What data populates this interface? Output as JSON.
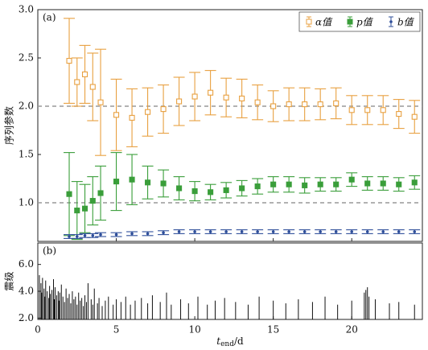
{
  "chart_data": [
    {
      "type": "errorbar",
      "label": "(a)",
      "ylabel": "序列参数",
      "x": [
        2,
        2.5,
        3,
        3.5,
        4,
        5,
        6,
        7,
        8,
        9,
        10,
        11,
        12,
        13,
        14,
        15,
        16,
        17,
        18,
        19,
        20,
        21,
        22,
        23,
        24
      ],
      "series": [
        {
          "name": "α值",
          "color": "#e8a040",
          "marker": "open-square",
          "values": [
            2.47,
            2.25,
            2.33,
            2.2,
            2.04,
            1.91,
            1.88,
            1.94,
            1.97,
            2.05,
            2.1,
            2.14,
            2.09,
            2.08,
            2.04,
            2.0,
            2.02,
            2.02,
            2.02,
            2.03,
            1.96,
            1.96,
            1.96,
            1.92,
            1.89
          ],
          "errors": [
            0.44,
            0.25,
            0.3,
            0.35,
            0.55,
            0.37,
            0.3,
            0.25,
            0.25,
            0.25,
            0.25,
            0.23,
            0.2,
            0.2,
            0.18,
            0.16,
            0.17,
            0.17,
            0.16,
            0.16,
            0.15,
            0.15,
            0.15,
            0.15,
            0.17
          ]
        },
        {
          "name": "p值",
          "color": "#3a9e3a",
          "marker": "filled-square",
          "values": [
            1.09,
            0.92,
            0.94,
            1.02,
            1.1,
            1.22,
            1.24,
            1.21,
            1.2,
            1.15,
            1.12,
            1.11,
            1.13,
            1.15,
            1.17,
            1.19,
            1.19,
            1.18,
            1.19,
            1.19,
            1.24,
            1.2,
            1.2,
            1.19,
            1.21
          ],
          "errors": [
            0.43,
            0.3,
            0.25,
            0.25,
            0.28,
            0.3,
            0.26,
            0.17,
            0.14,
            0.12,
            0.1,
            0.08,
            0.08,
            0.08,
            0.08,
            0.08,
            0.08,
            0.08,
            0.07,
            0.07,
            0.07,
            0.07,
            0.07,
            0.07,
            0.07
          ]
        },
        {
          "name": "b值",
          "color": "#2f4f9a",
          "marker": "dot",
          "values": [
            0.65,
            0.65,
            0.66,
            0.66,
            0.67,
            0.67,
            0.68,
            0.68,
            0.69,
            0.7,
            0.7,
            0.7,
            0.7,
            0.7,
            0.7,
            0.7,
            0.7,
            0.7,
            0.7,
            0.7,
            0.7,
            0.7,
            0.7,
            0.7,
            0.7
          ],
          "errors": [
            0.02,
            0.02,
            0.02,
            0.02,
            0.02,
            0.02,
            0.02,
            0.02,
            0.02,
            0.02,
            0.02,
            0.02,
            0.02,
            0.02,
            0.02,
            0.02,
            0.02,
            0.02,
            0.02,
            0.02,
            0.02,
            0.02,
            0.02,
            0.02,
            0.02
          ]
        }
      ],
      "xlim": [
        0,
        24.5
      ],
      "xticks": [
        0,
        5,
        10,
        15,
        20
      ],
      "ylim": [
        0.6,
        3.0
      ],
      "yticks": [
        {
          "value": 1.0,
          "label": "1.0"
        },
        1.5,
        {
          "value": 2.0,
          "label": "2.0"
        },
        2.5,
        {
          "value": 3.0,
          "label": "3.0"
        }
      ],
      "hlines": [
        1.0,
        2.0
      ],
      "legend": "upper right"
    },
    {
      "type": "stem",
      "label": "(b)",
      "ylabel": "震级",
      "color": "#111",
      "xlabel": {
        "main": "t",
        "sub": "end",
        "unit": "/d"
      },
      "x": [
        0.1,
        0.2,
        0.25,
        0.3,
        0.4,
        0.45,
        0.5,
        0.6,
        0.7,
        0.75,
        0.8,
        0.9,
        1.0,
        1.05,
        1.1,
        1.2,
        1.3,
        1.35,
        1.4,
        1.5,
        1.6,
        1.7,
        1.8,
        1.9,
        2.0,
        2.1,
        2.2,
        2.3,
        2.4,
        2.5,
        2.6,
        2.7,
        2.8,
        2.9,
        3.0,
        3.1,
        3.2,
        3.4,
        3.5,
        3.6,
        3.8,
        3.9,
        4.1,
        4.3,
        4.5,
        4.8,
        5.0,
        5.3,
        5.6,
        5.9,
        6.2,
        6.6,
        7.0,
        7.3,
        7.8,
        8.2,
        8.5,
        9.1,
        9.6,
        10.2,
        10.8,
        11.3,
        11.9,
        12.6,
        13.4,
        14.1,
        15.0,
        15.8,
        16.6,
        17.5,
        18.3,
        19.1,
        20.0,
        20.8,
        20.9,
        21.0,
        21.1,
        21.5,
        22.4,
        23.0,
        24.0
      ],
      "values": [
        5.2,
        4.6,
        3.9,
        5.0,
        4.2,
        3.6,
        4.8,
        4.0,
        3.5,
        4.4,
        3.8,
        4.1,
        4.9,
        3.4,
        4.3,
        3.7,
        4.0,
        3.3,
        3.9,
        4.5,
        3.6,
        3.2,
        4.2,
        3.5,
        3.8,
        3.1,
        4.0,
        3.4,
        3.6,
        3.0,
        3.9,
        3.3,
        3.5,
        2.9,
        3.7,
        3.2,
        4.6,
        3.4,
        3.0,
        4.2,
        3.1,
        3.5,
        2.9,
        3.3,
        3.6,
        3.0,
        3.4,
        3.2,
        3.6,
        3.0,
        3.3,
        3.5,
        3.1,
        3.7,
        3.2,
        3.9,
        3.0,
        3.4,
        3.1,
        3.6,
        3.0,
        3.3,
        3.5,
        3.2,
        3.0,
        3.6,
        3.3,
        3.1,
        3.4,
        3.2,
        3.6,
        3.0,
        3.3,
        3.9,
        4.1,
        4.3,
        3.6,
        3.4,
        3.1,
        3.2,
        3.0
      ],
      "xlim": [
        0,
        24.5
      ],
      "xticks": [
        0,
        5,
        10,
        15,
        20
      ],
      "ylim": [
        1.9,
        7.6
      ],
      "yticks": [
        {
          "value": 2.0,
          "label": "2.0"
        },
        {
          "value": 4.0,
          "label": "4.0"
        },
        {
          "value": 6.0,
          "label": "6.0"
        }
      ]
    }
  ]
}
